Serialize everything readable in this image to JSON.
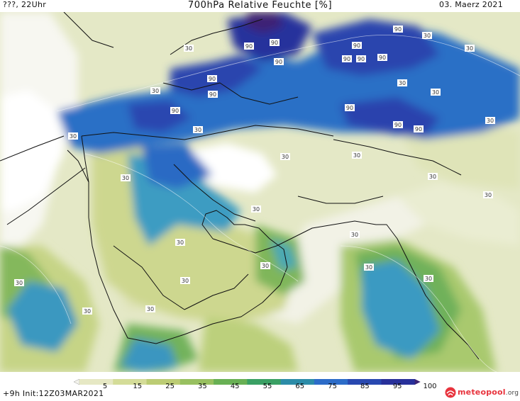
{
  "header": {
    "left": "???, 22Uhr",
    "title": "700hPa Relative Feuchte [%]",
    "date": "03. Maerz 2021"
  },
  "legend": {
    "ticks": [
      "5",
      "15",
      "25",
      "35",
      "45",
      "55",
      "65",
      "75",
      "85",
      "95",
      "100"
    ],
    "colors": [
      "#f4f4ec",
      "#e6e8c4",
      "#d4dc98",
      "#bccc74",
      "#98c060",
      "#68b054",
      "#3aa064",
      "#2c8ca8",
      "#2c6cc8",
      "#2848b0",
      "#28309a",
      "#3c2474"
    ]
  },
  "footer": {
    "run": "+9h Init:12Z03MAR2021",
    "brand": "meteopool",
    "brand_suffix": ".org"
  },
  "contour_labels": [
    "90",
    "90",
    "90",
    "90",
    "90",
    "90",
    "90",
    "90",
    "90",
    "90",
    "90",
    "90",
    "90",
    "90",
    "30",
    "30",
    "30",
    "30",
    "30",
    "30",
    "30",
    "30",
    "30",
    "30",
    "30",
    "30",
    "30",
    "30",
    "30",
    "30",
    "30",
    "30",
    "30",
    "30",
    "30",
    "30",
    "30",
    "30"
  ]
}
